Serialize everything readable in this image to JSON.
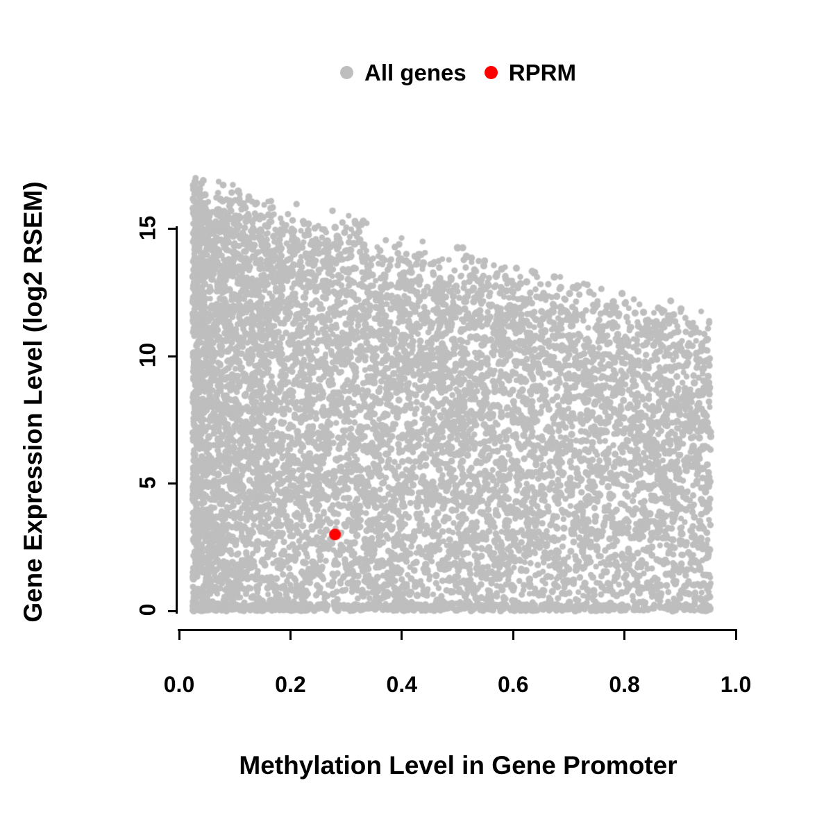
{
  "chart_data": {
    "type": "scatter",
    "title": "",
    "xlabel": "Methylation Level in Gene Promoter",
    "ylabel": "Gene Expression Level (log2 RSEM)",
    "xlim": [
      0.0,
      1.0
    ],
    "ylim": [
      0,
      17.5
    ],
    "grid": false,
    "x_ticks": [
      0.0,
      0.2,
      0.4,
      0.6,
      0.8,
      1.0
    ],
    "x_tick_labels": [
      "0.0",
      "0.2",
      "0.4",
      "0.6",
      "0.8",
      "1.0"
    ],
    "y_ticks": [
      0,
      5,
      10,
      15
    ],
    "y_tick_labels": [
      "0",
      "5",
      "10",
      "15"
    ],
    "legend": {
      "position": "top-center",
      "entries": [
        {
          "label": "All genes",
          "color": "#bebebe"
        },
        {
          "label": "RPRM",
          "color": "#ff0000"
        }
      ]
    },
    "series": [
      {
        "name": "All genes",
        "type": "dense-cloud",
        "color": "#bebebe",
        "n_points": 9000,
        "x_range": [
          0.025,
          0.955
        ],
        "y_range": [
          0,
          17.2
        ],
        "upper_envelope": "y ~ 16.6 - 5.8 * x",
        "generator": {
          "seed": 42,
          "x_min": 0.025,
          "x_span": 0.93,
          "x_pow": 1.45,
          "env_intercept": 16.6,
          "env_slope": -5.8,
          "env_noise": 1.6,
          "y_pow": 0.95,
          "baseline_frac": 0.06,
          "dot_radius_min": 4.0,
          "dot_radius_max": 5.4
        }
      },
      {
        "name": "RPRM",
        "type": "highlight-point",
        "color": "#ff0000",
        "points": [
          [
            0.28,
            3.0
          ]
        ],
        "dot_radius": 8.5
      }
    ]
  },
  "colors": {
    "background": "#ffffff",
    "axis": "#000000",
    "all_genes": "#bebebe",
    "rprm": "#ff0000"
  }
}
